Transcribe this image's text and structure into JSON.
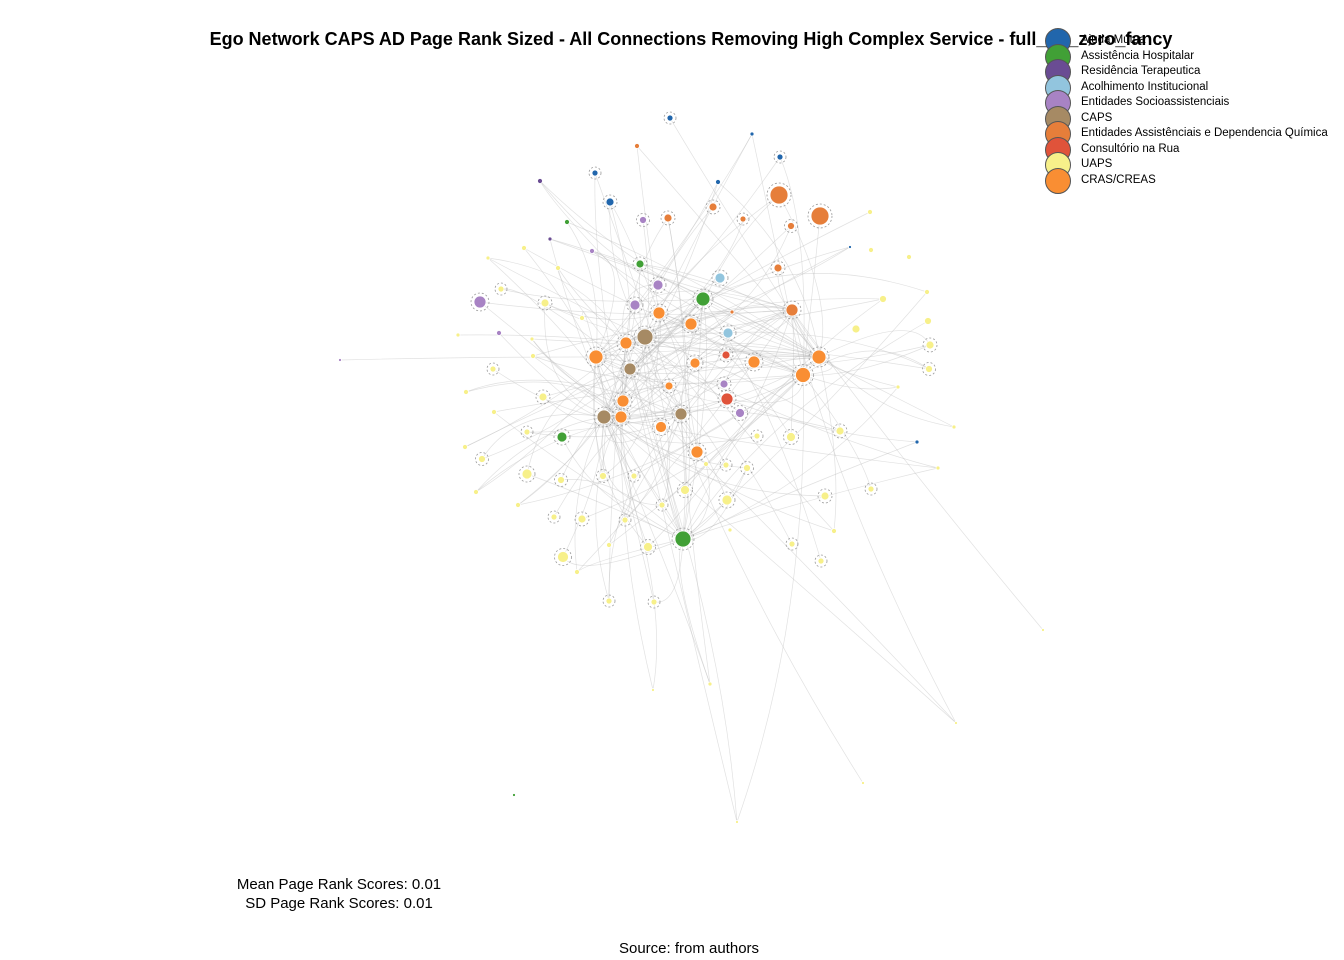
{
  "title": "Ego Network CAPS AD Page Rank Sized - All Connections Removing High Complex Service - full_no_zero_fancy",
  "legend": [
    {
      "label": "Ajuda Mútua",
      "color": "#2166ac"
    },
    {
      "label": "Assistência Hospitalar",
      "color": "#41a036"
    },
    {
      "label": "Residência Terapeutica",
      "color": "#6a4c93"
    },
    {
      "label": "Acolhimento Institucional",
      "color": "#92c5de"
    },
    {
      "label": "Entidades Socioassistenciais",
      "color": "#a883c4"
    },
    {
      "label": "CAPS",
      "color": "#a68a64"
    },
    {
      "label": "Entidades Assistênciais e Dependencia Química",
      "color": "#e67e3a"
    },
    {
      "label": "Consultório na Rua",
      "color": "#e0533a"
    },
    {
      "label": "UAPS",
      "color": "#f7f08a"
    },
    {
      "label": "CRAS/CREAS",
      "color": "#f98e33"
    }
  ],
  "stats": {
    "mean": "Mean Page Rank Scores: 0.01",
    "sd": "SD Page Rank Scores: 0.01"
  },
  "caption": "Source: from authors",
  "edge_color": "#bdbdbd"
}
